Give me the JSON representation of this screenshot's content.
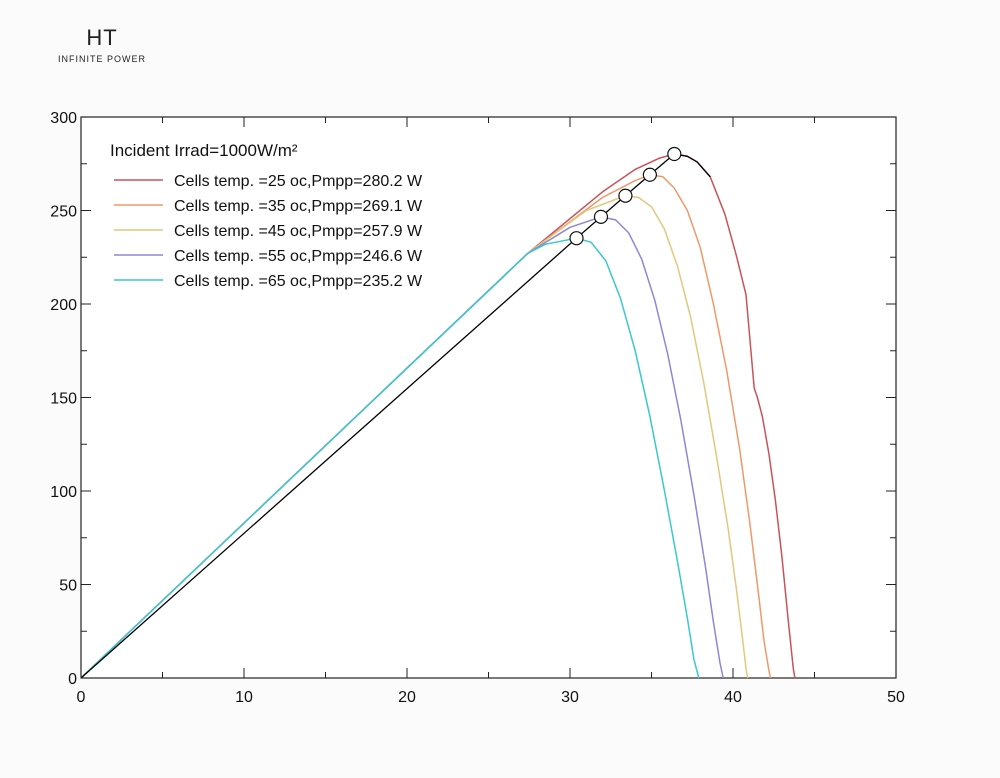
{
  "logo": {
    "mark": "HT",
    "tagline": "INFINITE POWER"
  },
  "chart_data": {
    "type": "line",
    "title": "Incident Irrad=1000W/m²",
    "xlabel": "",
    "ylabel": "",
    "xlim": [
      0,
      50
    ],
    "ylim": [
      0,
      300
    ],
    "x_ticks": [
      0,
      10,
      20,
      30,
      40,
      50
    ],
    "y_ticks": [
      0,
      50,
      100,
      150,
      200,
      250,
      300
    ],
    "grid": false,
    "legend_position": "top-left",
    "envelope_color": "#000000",
    "series": [
      {
        "name": "Cells temp. =25 oc,Pmpp=280.2 W",
        "color": "#c8545a",
        "mpp": [
          36.4,
          280.2
        ],
        "x": [
          0,
          27.4,
          32,
          34,
          35.5,
          36.4,
          37.2,
          37.8,
          38.6,
          39.5,
          40.2,
          40.8,
          41.3,
          41.5,
          41.8,
          42.2,
          42.6,
          43.0,
          43.4,
          43.7,
          43.8
        ],
        "y": [
          0,
          227,
          260,
          272,
          278,
          280.2,
          279,
          276,
          268,
          248,
          226,
          205,
          155,
          150,
          140,
          120,
          95,
          65,
          30,
          5,
          0
        ]
      },
      {
        "name": "Cells temp. =35 oc,Pmpp=269.1 W",
        "color": "#ec9a68",
        "mpp": [
          34.9,
          269.1
        ],
        "x": [
          0,
          27.4,
          32,
          34,
          34.9,
          35.7,
          36.4,
          37.2,
          38.0,
          38.8,
          39.6,
          40.4,
          41.0,
          41.5,
          41.9,
          42.2,
          42.3
        ],
        "y": [
          0,
          227,
          257,
          266,
          269.1,
          268,
          262,
          250,
          230,
          200,
          165,
          123,
          85,
          50,
          20,
          4,
          0
        ]
      },
      {
        "name": "Cells temp. =45 oc,Pmpp=257.9 W",
        "color": "#e2c77c",
        "mpp": [
          33.4,
          257.9
        ],
        "x": [
          0,
          27.4,
          31,
          33.4,
          34.2,
          35.0,
          35.8,
          36.6,
          37.4,
          38.2,
          39.0,
          39.7,
          40.2,
          40.6,
          40.8,
          40.9
        ],
        "y": [
          0,
          227,
          250,
          257.9,
          257,
          252,
          240,
          220,
          193,
          158,
          118,
          80,
          48,
          20,
          5,
          0
        ]
      },
      {
        "name": "Cells temp. =55 oc,Pmpp=246.6 W",
        "color": "#8c87d6",
        "mpp": [
          31.9,
          246.6
        ],
        "x": [
          0,
          27.4,
          30,
          31.9,
          32.8,
          33.6,
          34.4,
          35.2,
          36.0,
          36.8,
          37.6,
          38.3,
          38.8,
          39.2,
          39.4
        ],
        "y": [
          0,
          227,
          241,
          246.6,
          245,
          238,
          224,
          202,
          173,
          138,
          98,
          60,
          30,
          8,
          0
        ]
      },
      {
        "name": "Cells temp. =65 oc,Pmpp=235.2 W",
        "color": "#38c8d0",
        "mpp": [
          30.4,
          235.2
        ],
        "x": [
          0,
          27.4,
          28.5,
          30.4,
          31.3,
          32.2,
          33.1,
          34.0,
          34.9,
          35.8,
          36.6,
          37.2,
          37.6,
          37.9
        ],
        "y": [
          0,
          227,
          232,
          235.2,
          233,
          223,
          203,
          175,
          140,
          100,
          62,
          32,
          10,
          0
        ]
      }
    ]
  }
}
